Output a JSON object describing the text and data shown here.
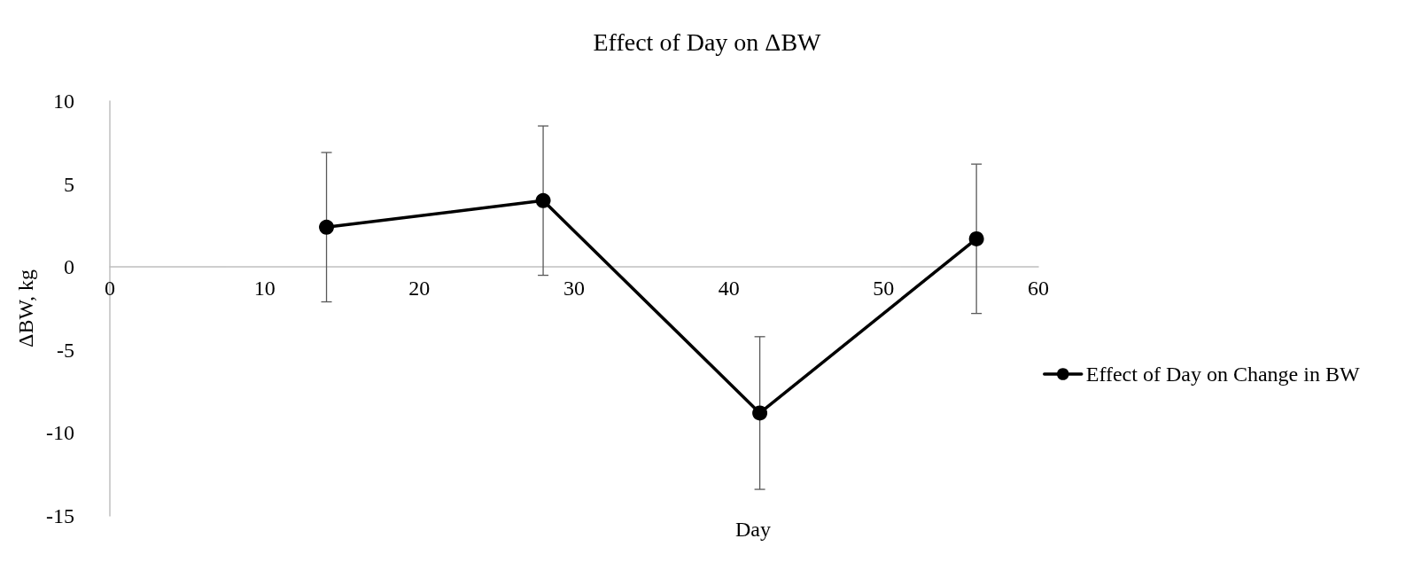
{
  "chart_data": {
    "type": "line",
    "title": "Effect of Day on ΔBW",
    "xlabel": "Day",
    "ylabel": "ΔBW, kg",
    "x": [
      14,
      28,
      42,
      56
    ],
    "series": [
      {
        "name": "Effect of Day on Change in BW",
        "color": "#000000",
        "values": [
          2.4,
          4.0,
          -8.8,
          1.7
        ],
        "errors": [
          4.5,
          4.5,
          4.6,
          4.5
        ]
      }
    ],
    "xlim": [
      0,
      60
    ],
    "xticks": [
      0,
      10,
      20,
      30,
      40,
      50,
      60
    ],
    "ylim": [
      -15,
      10
    ],
    "yticks": [
      -15,
      -10,
      -5,
      0,
      5,
      10
    ],
    "grid": false,
    "legend": "right",
    "marker": "circle",
    "line_style": "solid"
  }
}
